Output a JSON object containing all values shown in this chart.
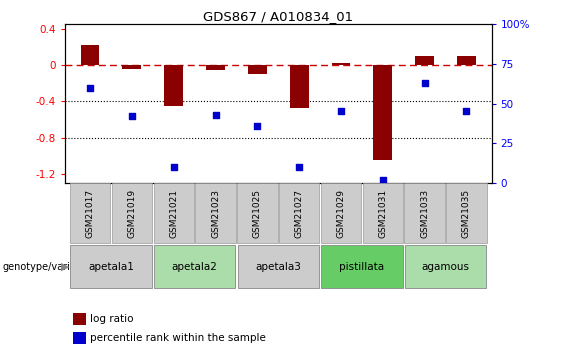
{
  "title": "GDS867 / A010834_01",
  "samples": [
    "GSM21017",
    "GSM21019",
    "GSM21021",
    "GSM21023",
    "GSM21025",
    "GSM21027",
    "GSM21029",
    "GSM21031",
    "GSM21033",
    "GSM21035"
  ],
  "log_ratio": [
    0.22,
    -0.04,
    -0.45,
    -0.06,
    -0.1,
    -0.47,
    0.02,
    -1.05,
    0.1,
    0.1
  ],
  "percentile_rank": [
    60,
    42,
    10,
    43,
    36,
    10,
    45,
    2,
    63,
    45
  ],
  "groups": [
    {
      "label": "apetala1",
      "start": 0,
      "end": 1,
      "color": "#cccccc"
    },
    {
      "label": "apetala2",
      "start": 2,
      "end": 3,
      "color": "#aaddaa"
    },
    {
      "label": "apetala3",
      "start": 4,
      "end": 5,
      "color": "#cccccc"
    },
    {
      "label": "pistillata",
      "start": 6,
      "end": 7,
      "color": "#66cc66"
    },
    {
      "label": "agamous",
      "start": 8,
      "end": 9,
      "color": "#aaddaa"
    }
  ],
  "ylim_left": [
    -1.3,
    0.45
  ],
  "ylim_right": [
    0,
    100
  ],
  "yticks_left": [
    0.4,
    0.0,
    -0.4,
    -0.8,
    -1.2
  ],
  "ytick_labels_left": [
    "0.4",
    "0",
    "-0.4",
    "-0.8",
    "-1.2"
  ],
  "yticks_right": [
    0,
    25,
    50,
    75,
    100
  ],
  "ytick_labels_right": [
    "0",
    "25",
    "50",
    "75",
    "100%"
  ],
  "bar_color": "#8B0000",
  "dot_color": "#0000CC",
  "hline_color": "#CC0000",
  "dotline_color": "#000000",
  "sample_box_color": "#cccccc",
  "sample_box_edge": "#999999"
}
